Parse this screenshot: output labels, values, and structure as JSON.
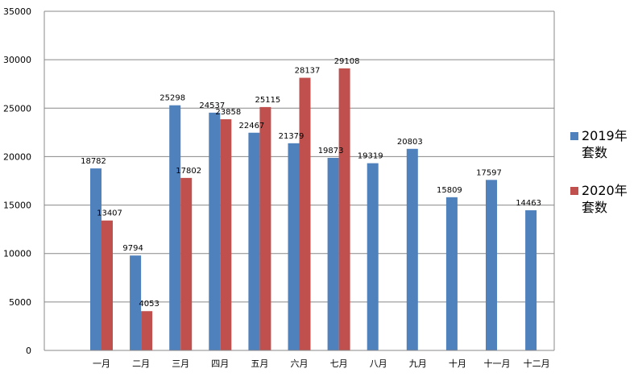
{
  "chart_data": {
    "type": "bar",
    "categories": [
      "一月",
      "二月",
      "三月",
      "四月",
      "五月",
      "六月",
      "七月",
      "八月",
      "九月",
      "十月",
      "十一月",
      "十二月"
    ],
    "series": [
      {
        "name": "2019年\n套数",
        "color": "#4F81BD",
        "values": [
          18782,
          9794,
          25298,
          24537,
          22467,
          21379,
          19873,
          19319,
          20803,
          15809,
          17597,
          14463
        ]
      },
      {
        "name": "2020年\n套数",
        "color": "#C0504D",
        "values": [
          13407,
          4053,
          17802,
          23858,
          25115,
          28137,
          29108,
          null,
          null,
          null,
          null,
          null
        ]
      }
    ],
    "ylim": [
      0,
      35000
    ],
    "yticks": [
      0,
      5000,
      10000,
      15000,
      20000,
      25000,
      30000,
      35000
    ],
    "grid": true,
    "legend": "right"
  }
}
